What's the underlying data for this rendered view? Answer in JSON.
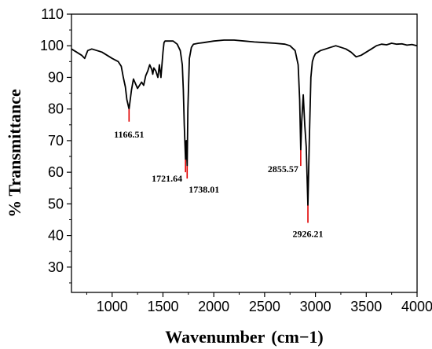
{
  "chart_data": {
    "type": "line",
    "title": "",
    "xlabel": "Wavenumber",
    "xlabel_unit": "(cm−1)",
    "ylabel": "% Transmittance",
    "xlim": [
      600,
      4000
    ],
    "ylim": [
      22,
      110
    ],
    "x_ticks": [
      "1000",
      "1500",
      "2000",
      "2500",
      "3000",
      "3500",
      "4000"
    ],
    "y_ticks": [
      "30",
      "40",
      "50",
      "60",
      "70",
      "80",
      "90",
      "100",
      "110"
    ],
    "x_tick_values": [
      1000,
      1500,
      2000,
      2500,
      3000,
      3500,
      4000
    ],
    "y_tick_values": [
      30,
      40,
      50,
      60,
      70,
      80,
      90,
      100,
      110
    ],
    "grid": false,
    "line_color": "#000000",
    "marker_color": "#e00000",
    "series": [
      {
        "x": [
          600,
          650,
          700,
          730,
          760,
          800,
          850,
          900,
          950,
          1000,
          1030,
          1060,
          1090,
          1110,
          1130,
          1145,
          1166.51,
          1190,
          1210,
          1230,
          1250,
          1270,
          1290,
          1310,
          1330,
          1350,
          1370,
          1390,
          1400,
          1410,
          1430,
          1450,
          1465,
          1480,
          1500,
          1510,
          1520,
          1540,
          1560,
          1600,
          1640,
          1670,
          1690,
          1700,
          1710,
          1721.64,
          1730,
          1738.01,
          1745,
          1760,
          1780,
          1800,
          1850,
          1900,
          2000,
          2100,
          2200,
          2300,
          2400,
          2500,
          2600,
          2700,
          2750,
          2800,
          2830,
          2845,
          2855.57,
          2865,
          2880,
          2895,
          2910,
          2926.21,
          2940,
          2955,
          2970,
          2985,
          3000,
          3050,
          3100,
          3150,
          3200,
          3250,
          3300,
          3350,
          3400,
          3450,
          3500,
          3550,
          3600,
          3650,
          3700,
          3750,
          3800,
          3850,
          3900,
          3950,
          4000
        ],
        "y": [
          99,
          98,
          97,
          96,
          98.5,
          99,
          98.5,
          98,
          97,
          96,
          95.5,
          95,
          93.5,
          90,
          87,
          83,
          80,
          86,
          89.5,
          88,
          86.5,
          87.5,
          88.5,
          87.5,
          90.5,
          92,
          94,
          92.5,
          91,
          93,
          92,
          90,
          94,
          90,
          98,
          101,
          101.5,
          101.5,
          101.5,
          101.5,
          100.5,
          98.5,
          94,
          86,
          75,
          64,
          70,
          62,
          80,
          96,
          99.5,
          100.5,
          100.8,
          101,
          101.5,
          101.8,
          101.8,
          101.5,
          101.2,
          101,
          100.8,
          100.5,
          100,
          98.5,
          94,
          83,
          67,
          76,
          84.5,
          75,
          68,
          49.5,
          70,
          90,
          95,
          96.5,
          97.5,
          98.5,
          99,
          99.5,
          100,
          99.5,
          99,
          98,
          96.5,
          97,
          98,
          99,
          100,
          100.5,
          100.3,
          100.8,
          100.5,
          100.6,
          100.2,
          100.4,
          100
        ]
      }
    ],
    "annotations": [
      {
        "label": "1166.51",
        "x": 1166.51,
        "y": 80,
        "marker_top": 80,
        "marker_bottom": 76
      },
      {
        "label": "1721.64",
        "x": 1721.64,
        "y": 64,
        "marker_top": 64,
        "marker_bottom": 60
      },
      {
        "label": "1738.01",
        "x": 1738.01,
        "y": 62,
        "marker_top": 62,
        "marker_bottom": 58
      },
      {
        "label": "2855.57",
        "x": 2855.57,
        "y": 67,
        "marker_top": 67,
        "marker_bottom": 62
      },
      {
        "label": "2926.21",
        "x": 2926.21,
        "y": 49.5,
        "marker_top": 49.5,
        "marker_bottom": 44
      }
    ]
  }
}
